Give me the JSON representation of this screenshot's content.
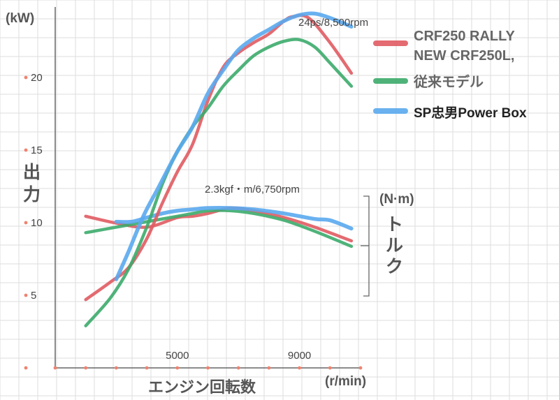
{
  "chart_data": {
    "type": "line",
    "ylabel_left": "出力",
    "yunit_left": "(kW)",
    "ylabel_right": "トルク",
    "yunit_right": "(N·m)",
    "xlabel": "エンジン回転数",
    "xunit": "(r/min)",
    "x_ticks": [
      "5000",
      "9000"
    ],
    "y_ticks_left": [
      "5",
      "10",
      "15",
      "20"
    ],
    "ylim_left": [
      0,
      25
    ],
    "annotations": [
      "24ps/8,500rpm",
      "2.3kgf・m/6,750rpm"
    ],
    "legend": [
      {
        "label_lines": [
          "CRF250 RALLY",
          "NEW CRF250L,"
        ],
        "color": "#e05b62"
      },
      {
        "label_lines": [
          "従来モデル"
        ],
        "color": "#3cab6b"
      },
      {
        "label_lines": [
          "SP忠男Power Box"
        ],
        "color": "#5aa9ee"
      }
    ],
    "power_series": [
      {
        "color": "#e05b62",
        "x": [
          2000,
          2800,
          3400,
          4000,
          4500,
          5000,
          5500,
          6000,
          6500,
          7000,
          7500,
          8000,
          8500,
          8800,
          9300,
          10000,
          10700
        ],
        "y": [
          4.7,
          5.9,
          6.9,
          8.9,
          11.3,
          13.5,
          15.4,
          18.4,
          20.7,
          21.7,
          22.4,
          23.0,
          23.9,
          24.2,
          24.1,
          22.4,
          20.3
        ]
      },
      {
        "color": "#3cab6b",
        "x": [
          2000,
          2800,
          3400,
          4000,
          4500,
          5000,
          5500,
          6000,
          6500,
          7000,
          7500,
          8000,
          8500,
          9000,
          9500,
          10000,
          10700
        ],
        "y": [
          2.9,
          4.8,
          6.8,
          9.7,
          12.6,
          14.9,
          16.6,
          17.9,
          19.4,
          20.5,
          21.5,
          22.1,
          22.5,
          22.6,
          22.1,
          21.0,
          19.4
        ]
      },
      {
        "color": "#5aa9ee",
        "x": [
          3000,
          3400,
          3900,
          4400,
          5000,
          5500,
          6000,
          6500,
          7000,
          7500,
          8000,
          8500,
          9000,
          9500,
          10000,
          10700
        ],
        "y": [
          6.1,
          8.0,
          10.5,
          12.5,
          14.9,
          16.6,
          18.9,
          20.5,
          21.9,
          22.7,
          23.3,
          23.9,
          24.3,
          24.4,
          24.1,
          23.5
        ]
      }
    ],
    "torque_series": [
      {
        "color": "#e05b62",
        "x": [
          2000,
          3000,
          4000,
          5000,
          5500,
          6000,
          6750,
          7500,
          8500,
          9500,
          10700
        ],
        "rel": [
          0.94,
          0.89,
          0.86,
          0.93,
          0.94,
          0.96,
          1.0,
          0.98,
          0.93,
          0.86,
          0.76
        ]
      },
      {
        "color": "#3cab6b",
        "x": [
          2000,
          3000,
          4000,
          5000,
          5500,
          6000,
          6750,
          7500,
          8500,
          9500,
          10700
        ],
        "rel": [
          0.82,
          0.86,
          0.9,
          0.94,
          0.96,
          0.98,
          0.98,
          0.96,
          0.91,
          0.83,
          0.72
        ]
      },
      {
        "color": "#5aa9ee",
        "x": [
          3000,
          3500,
          4000,
          4500,
          5000,
          5500,
          6000,
          6750,
          7500,
          8500,
          9500,
          10000,
          10700
        ],
        "rel": [
          0.9,
          0.9,
          0.93,
          0.96,
          0.98,
          0.99,
          1.0,
          1.0,
          0.99,
          0.96,
          0.92,
          0.91,
          0.85
        ]
      }
    ]
  }
}
